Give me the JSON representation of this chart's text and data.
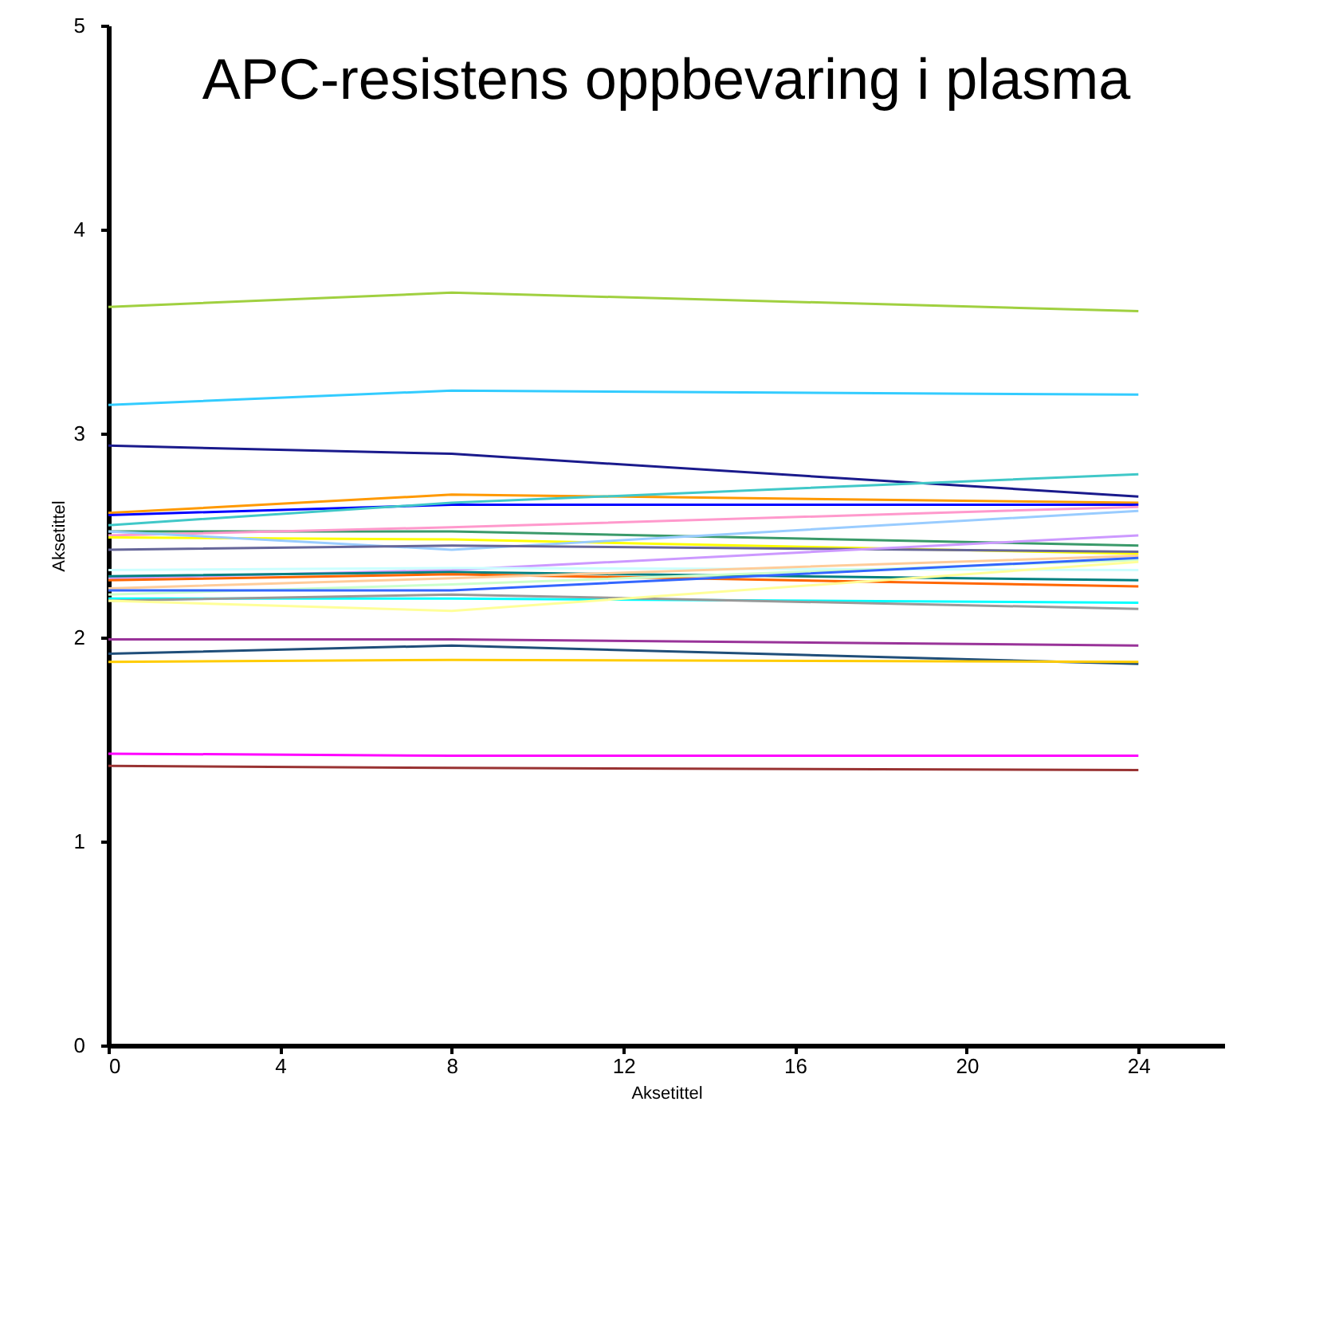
{
  "chart_data": {
    "type": "line",
    "title": "APC-resistens oppbevaring i plasma",
    "xlabel": "Aksetittel",
    "ylabel": "Aksetittel",
    "x": [
      0,
      8,
      24
    ],
    "xlim": [
      0,
      26
    ],
    "xticks": [
      0,
      4,
      8,
      12,
      16,
      20,
      24
    ],
    "ylim": [
      0,
      5
    ],
    "yticks": [
      0,
      1,
      2,
      3,
      4,
      5
    ],
    "grid": false,
    "legend": false,
    "marker": "none",
    "line_style": "solid",
    "series": [
      {
        "color": "#a0d040",
        "values": [
          3.62,
          3.69,
          3.6
        ]
      },
      {
        "color": "#33ccff",
        "values": [
          3.14,
          3.21,
          3.19
        ]
      },
      {
        "color": "#1a1a8c",
        "values": [
          2.94,
          2.9,
          2.69
        ]
      },
      {
        "color": "#ff9900",
        "values": [
          2.61,
          2.7,
          2.66
        ]
      },
      {
        "color": "#0000ff",
        "values": [
          2.6,
          2.65,
          2.65
        ]
      },
      {
        "color": "#40c8c8",
        "values": [
          2.55,
          2.66,
          2.8
        ]
      },
      {
        "color": "#3a9a6a",
        "values": [
          2.52,
          2.52,
          2.45
        ]
      },
      {
        "color": "#ff99cc",
        "values": [
          2.5,
          2.54,
          2.64
        ]
      },
      {
        "color": "#ffff00",
        "values": [
          2.49,
          2.48,
          2.41
        ]
      },
      {
        "color": "#99ccff",
        "values": [
          2.52,
          2.43,
          2.62
        ]
      },
      {
        "color": "#666699",
        "values": [
          2.43,
          2.45,
          2.42
        ]
      },
      {
        "color": "#cc99ff",
        "values": [
          2.29,
          2.33,
          2.5
        ]
      },
      {
        "color": "#ccffff",
        "values": [
          2.33,
          2.34,
          2.33
        ]
      },
      {
        "color": "#008080",
        "values": [
          2.3,
          2.32,
          2.28
        ]
      },
      {
        "color": "#ff6600",
        "values": [
          2.28,
          2.31,
          2.25
        ]
      },
      {
        "color": "#ffcc99",
        "values": [
          2.24,
          2.29,
          2.4
        ]
      },
      {
        "color": "#ccffcc",
        "values": [
          2.21,
          2.26,
          2.38
        ]
      },
      {
        "color": "#3366ff",
        "values": [
          2.23,
          2.23,
          2.39
        ]
      },
      {
        "color": "#00ffff",
        "values": [
          2.19,
          2.19,
          2.17
        ]
      },
      {
        "color": "#999999",
        "values": [
          2.18,
          2.21,
          2.14
        ]
      },
      {
        "color": "#ffff99",
        "values": [
          2.18,
          2.13,
          2.37
        ]
      },
      {
        "color": "#993399",
        "values": [
          1.99,
          1.99,
          1.96
        ]
      },
      {
        "color": "#1f4e79",
        "values": [
          1.92,
          1.96,
          1.87
        ]
      },
      {
        "color": "#ffcc00",
        "values": [
          1.88,
          1.89,
          1.88
        ]
      },
      {
        "color": "#ff00ff",
        "values": [
          1.43,
          1.42,
          1.42
        ]
      },
      {
        "color": "#993333",
        "values": [
          1.37,
          1.36,
          1.35
        ]
      }
    ]
  }
}
